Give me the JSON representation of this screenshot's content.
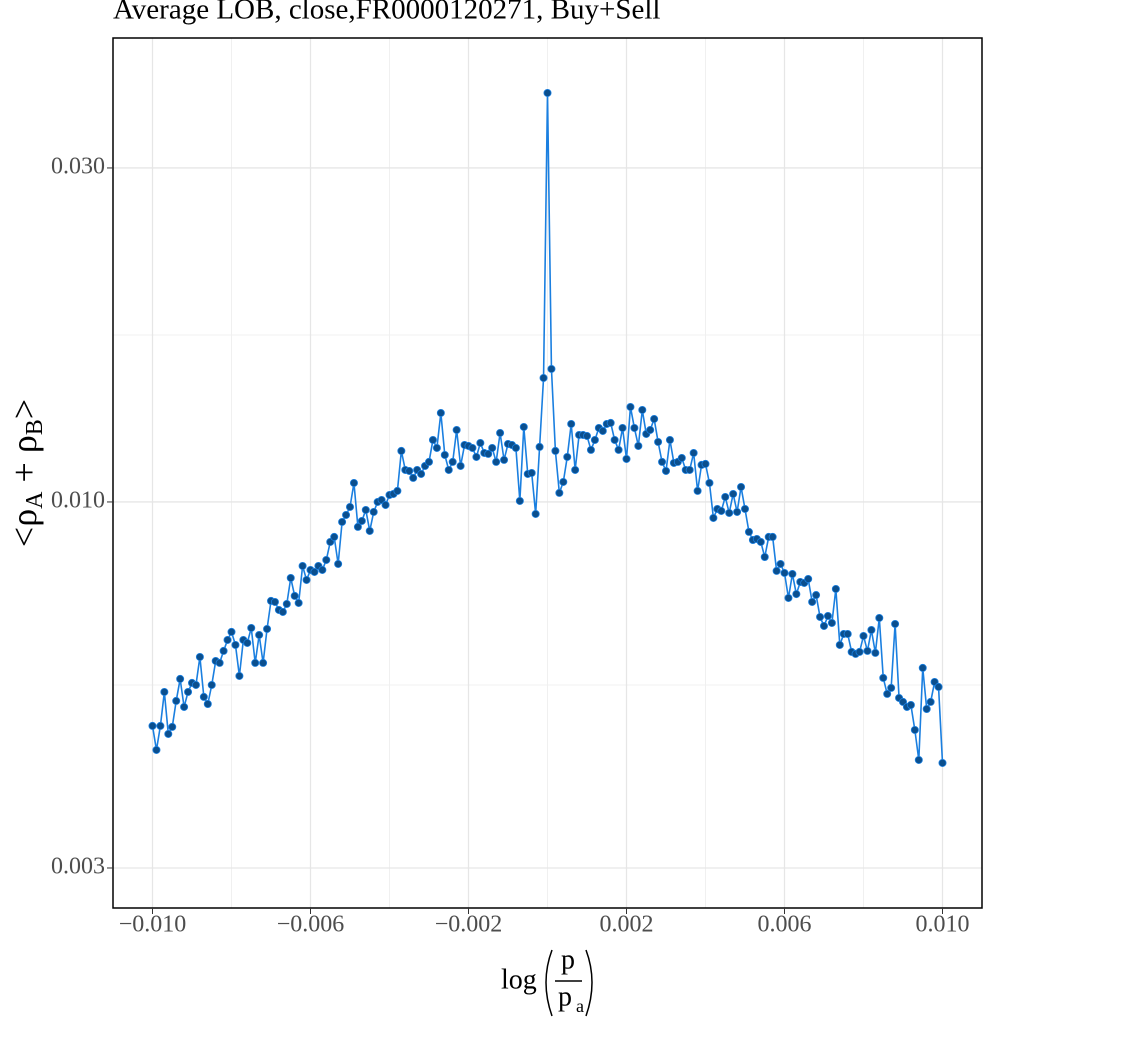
{
  "chart_data": {
    "type": "line",
    "title": "Average LOB, close,FR0000120271, Buy+Sell",
    "xlabel_parts": [
      "log",
      "p",
      "p",
      "a"
    ],
    "ylabel_parts": [
      "<ρ",
      "A",
      " + ρ",
      "B",
      ">"
    ],
    "x": [
      -0.01,
      -0.0099,
      -0.0098,
      -0.0097,
      -0.0096,
      -0.0095,
      -0.0094,
      -0.0093,
      -0.0092,
      -0.0091,
      -0.009,
      -0.0089,
      -0.0088,
      -0.0087,
      -0.0086,
      -0.0085,
      -0.0084,
      -0.0083,
      -0.0082,
      -0.0081,
      -0.008,
      -0.0079,
      -0.0078,
      -0.0077,
      -0.0076,
      -0.0075,
      -0.0074,
      -0.0073,
      -0.0072,
      -0.0071,
      -0.007,
      -0.0069,
      -0.0068,
      -0.0067,
      -0.0066,
      -0.0065,
      -0.0064,
      -0.0063,
      -0.0062,
      -0.0061,
      -0.006,
      -0.0059,
      -0.0058,
      -0.0057,
      -0.0056,
      -0.0055,
      -0.0054,
      -0.0053,
      -0.0052,
      -0.0051,
      -0.005,
      -0.0049,
      -0.0048,
      -0.0047,
      -0.0046,
      -0.0045,
      -0.0044,
      -0.0043,
      -0.0042,
      -0.0041,
      -0.004,
      -0.0039,
      -0.0038,
      -0.0037,
      -0.0036,
      -0.0035,
      -0.0034,
      -0.0033,
      -0.0032,
      -0.0031,
      -0.003,
      -0.0029,
      -0.0028,
      -0.0027,
      -0.0026,
      -0.0025,
      -0.0024,
      -0.0023,
      -0.0022,
      -0.0021,
      -0.002,
      -0.0019,
      -0.0018,
      -0.0017,
      -0.0016,
      -0.0015,
      -0.0014,
      -0.0013,
      -0.0012,
      -0.0011,
      -0.001,
      -0.0009,
      -0.0008,
      -0.0007,
      -0.0006,
      -0.0005,
      -0.0004,
      -0.0003,
      -0.0002,
      -0.0001,
      0,
      0.0001,
      0.0002,
      0.0003,
      0.0004,
      0.0005,
      0.0006,
      0.0007,
      0.0008,
      0.0009,
      0.001,
      0.0011,
      0.0012,
      0.0013,
      0.0014,
      0.0015,
      0.0016,
      0.0017,
      0.0018,
      0.0019,
      0.002,
      0.0021,
      0.0022,
      0.0023,
      0.0024,
      0.0025,
      0.0026,
      0.0027,
      0.0028,
      0.0029,
      0.003,
      0.0031,
      0.0032,
      0.0033,
      0.0034,
      0.0035,
      0.0036,
      0.0037,
      0.0038,
      0.0039,
      0.004,
      0.0041,
      0.0042,
      0.0043,
      0.0044,
      0.0045,
      0.0046,
      0.0047,
      0.0048,
      0.0049,
      0.005,
      0.0051,
      0.0052,
      0.0053,
      0.0054,
      0.0055,
      0.0056,
      0.0057,
      0.0058,
      0.0059,
      0.006,
      0.0061,
      0.0062,
      0.0063,
      0.0064,
      0.0065,
      0.0066,
      0.0067,
      0.0068,
      0.0069,
      0.007,
      0.0071,
      0.0072,
      0.0073,
      0.0074,
      0.0075,
      0.0076,
      0.0077,
      0.0078,
      0.0079,
      0.008,
      0.0081,
      0.0082,
      0.0083,
      0.0084,
      0.0085,
      0.0086,
      0.0087,
      0.0088,
      0.0089,
      0.009,
      0.0091,
      0.0092,
      0.0093,
      0.0094,
      0.0095,
      0.0096,
      0.0097,
      0.0098,
      0.0099,
      0.01
    ],
    "series": [
      {
        "color": "#1a7fe0",
        "marker_color": "#0b4f8e",
        "values": [
          0.004787,
          0.004423,
          0.004787,
          0.005353,
          0.004662,
          0.004771,
          0.005197,
          0.005587,
          0.005095,
          0.005353,
          0.005514,
          0.005477,
          0.006006,
          0.005266,
          0.005145,
          0.005477,
          0.005927,
          0.005889,
          0.006126,
          0.006351,
          0.006521,
          0.006248,
          0.005642,
          0.006351,
          0.006289,
          0.006607,
          0.005889,
          0.006456,
          0.005889,
          0.006585,
          0.007221,
          0.007197,
          0.00701,
          0.006964,
          0.00715,
          0.007788,
          0.007341,
          0.007173,
          0.008102,
          0.007737,
          0.007996,
          0.007943,
          0.008102,
          0.007996,
          0.008263,
          0.008767,
          0.008913,
          0.008155,
          0.009363,
          0.009581,
          0.009837,
          0.010645,
          0.009211,
          0.009394,
          0.00974,
          0.00909,
          0.009676,
          0.01,
          0.010066,
          0.009902,
          0.010233,
          0.010267,
          0.010369,
          0.011827,
          0.01111,
          0.011073,
          0.010822,
          0.01111,
          0.010965,
          0.011257,
          0.011407,
          0.012262,
          0.011944,
          0.013401,
          0.011672,
          0.01111,
          0.011407,
          0.012672,
          0.011257,
          0.012062,
          0.012023,
          0.011944,
          0.011595,
          0.012142,
          0.011749,
          0.011711,
          0.011944,
          0.011407,
          0.012548,
          0.011482,
          0.012102,
          0.012062,
          0.011944,
          0.010033,
          0.012798,
          0.010965,
          0.011001,
          0.009613,
          0.011984,
          0.015036,
          0.038393,
          0.015488,
          0.011827,
          0.010301,
          0.01068,
          0.011595,
          0.012925,
          0.01111,
          0.012465,
          0.012465,
          0.012424,
          0.011867,
          0.012262,
          0.012756,
          0.012631,
          0.012925,
          0.012968,
          0.012262,
          0.011867,
          0.012756,
          0.011519,
          0.013668,
          0.012756,
          0.012023,
          0.013534,
          0.012507,
          0.012672,
          0.013139,
          0.012182,
          0.011407,
          0.011073,
          0.012262,
          0.011369,
          0.011407,
          0.011557,
          0.01111,
          0.01111,
          0.011749,
          0.010369,
          0.011295,
          0.011332,
          0.010645,
          0.009487,
          0.009772,
          0.009708,
          0.010166,
          0.009645,
          0.010267,
          0.009676,
          0.010506,
          0.009772,
          0.009061,
          0.008824,
          0.008854,
          0.008767,
          0.008344,
          0.008913,
          0.008913,
          0.00797,
          0.008155,
          0.007917,
          0.007292,
          0.00789,
          0.007386,
          0.007686,
          0.007661,
          0.007762,
          0.007197,
          0.007362,
          0.00685,
          0.00665,
          0.006873,
          0.006716,
          0.007511,
          0.006248,
          0.006478,
          0.006478,
          0.006106,
          0.006066,
          0.006106,
          0.006435,
          0.006126,
          0.006563,
          0.006086,
          0.006828,
          0.005606,
          0.005318,
          0.005424,
          0.006694,
          0.005248,
          0.00518,
          0.005095,
          0.005128,
          0.004724,
          0.00428,
          0.005793,
          0.005061,
          0.00518,
          0.005532,
          0.005442,
          0.004238
        ]
      }
    ],
    "xlim": [
      -0.011,
      0.011
    ],
    "ylim": [
      0.00263,
      0.046
    ],
    "log_y": true,
    "grid": true,
    "xticks": [
      {
        "value": -0.01,
        "label": "−0.010"
      },
      {
        "value": -0.006,
        "label": "−0.006"
      },
      {
        "value": -0.002,
        "label": "−0.002"
      },
      {
        "value": 0.002,
        "label": "0.002"
      },
      {
        "value": 0.006,
        "label": "0.006"
      },
      {
        "value": 0.01,
        "label": "0.010"
      }
    ],
    "yticks": [
      {
        "value": 0.003,
        "label": "0.003"
      },
      {
        "value": 0.01,
        "label": "0.010"
      },
      {
        "value": 0.03,
        "label": "0.030"
      }
    ]
  }
}
